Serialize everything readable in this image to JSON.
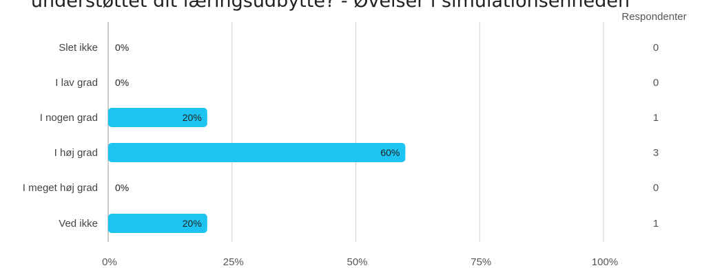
{
  "title": "understøttet dit læringsudbytte? - Øvelser i simulationsenheden",
  "respondents_header": "Respondenter",
  "colors": {
    "bar": "#1ec4f1",
    "grid": "#cfcfcf",
    "axis": "#999999"
  },
  "chart_data": {
    "type": "bar",
    "orientation": "horizontal",
    "title": "understøttet dit læringsudbytte? - Øvelser i simulationsenheden",
    "categories": [
      "Slet ikke",
      "I lav grad",
      "I nogen grad",
      "I høj grad",
      "I meget høj grad",
      "Ved ikke"
    ],
    "values": [
      0,
      0,
      20,
      60,
      0,
      20
    ],
    "value_labels": [
      "0%",
      "0%",
      "20%",
      "60%",
      "0%",
      "20%"
    ],
    "respondents": [
      0,
      0,
      1,
      3,
      0,
      1
    ],
    "xlim": [
      0,
      100
    ],
    "x_ticks": [
      0,
      25,
      50,
      75,
      100
    ],
    "x_tick_labels": [
      "0%",
      "25%",
      "50%",
      "75%",
      "100%"
    ],
    "grid": true
  }
}
